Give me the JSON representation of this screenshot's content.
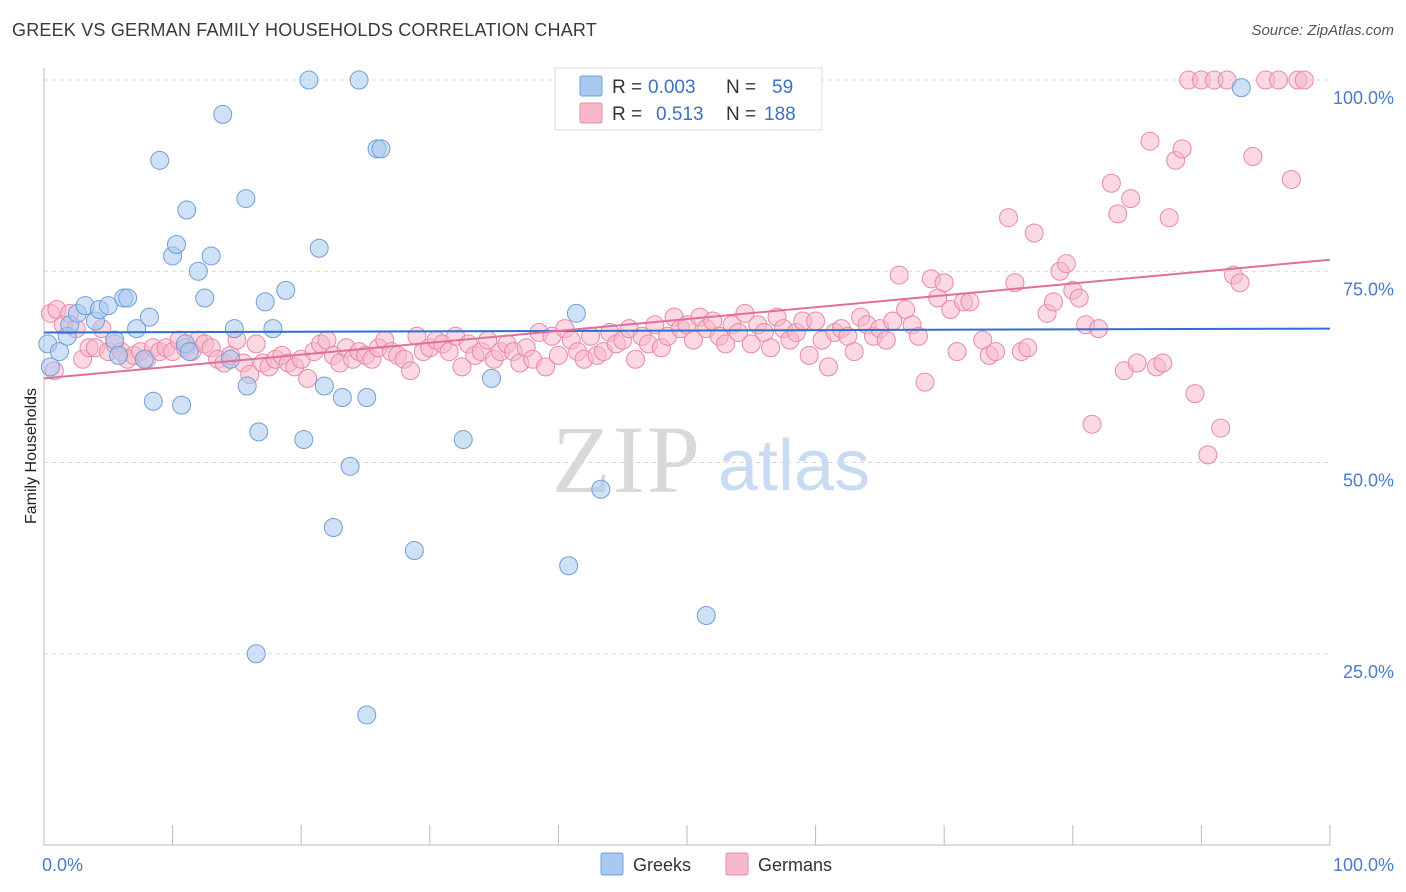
{
  "header": {
    "title": "GREEK VS GERMAN FAMILY HOUSEHOLDS CORRELATION CHART",
    "source": "Source: ZipAtlas.com"
  },
  "watermark": {
    "zip": "ZIP",
    "atlas": "atlas"
  },
  "legend_top": {
    "rows": [
      {
        "r_label": "R =",
        "r_value": "0.003",
        "n_label": "N =",
        "n_value": "59",
        "color": "#a8c8f0",
        "stroke": "#6f9fd8"
      },
      {
        "r_label": "R =",
        "r_value": "0.513",
        "n_label": "N =",
        "n_value": "188",
        "color": "#f7b8cb",
        "stroke": "#e889a8"
      }
    ]
  },
  "legend_bottom": [
    {
      "label": "Greeks",
      "color": "#a8c8f0",
      "stroke": "#6f9fd8"
    },
    {
      "label": "Germans",
      "color": "#f7b8cb",
      "stroke": "#e889a8"
    }
  ],
  "chart_data": {
    "type": "scatter",
    "title": "GREEK VS GERMAN FAMILY HOUSEHOLDS CORRELATION CHART",
    "xlabel": "",
    "ylabel": "Family Households",
    "xlim": [
      0,
      100
    ],
    "ylim": [
      0,
      100
    ],
    "x_tick_labels": [
      "0.0%",
      "100.0%"
    ],
    "y_tick_labels": [
      {
        "value": 25,
        "label": "25.0%"
      },
      {
        "value": 50,
        "label": "50.0%"
      },
      {
        "value": 75,
        "label": "75.0%"
      },
      {
        "value": 100,
        "label": "100.0%"
      }
    ],
    "grid": true,
    "legend_placement": "top-center",
    "series": [
      {
        "name": "Greeks",
        "color": "#a8c8f0",
        "stroke": "#6f9fd8",
        "trend_color": "#2f6fcf",
        "trend": {
          "x0": 0,
          "y0": 67.0,
          "x1": 100,
          "y1": 67.5
        },
        "points": [
          [
            0.3,
            65.5
          ],
          [
            0.5,
            62.5
          ],
          [
            1.2,
            64.5
          ],
          [
            1.8,
            66.5
          ],
          [
            2.0,
            68.0
          ],
          [
            2.6,
            69.5
          ],
          [
            3.2,
            70.5
          ],
          [
            4.0,
            68.5
          ],
          [
            4.3,
            70.0
          ],
          [
            5.0,
            70.5
          ],
          [
            5.5,
            66.0
          ],
          [
            5.8,
            64.0
          ],
          [
            6.2,
            71.5
          ],
          [
            6.5,
            71.5
          ],
          [
            7.2,
            67.5
          ],
          [
            7.8,
            63.5
          ],
          [
            8.2,
            69.0
          ],
          [
            8.5,
            58.0
          ],
          [
            9.0,
            89.5
          ],
          [
            10.0,
            77.0
          ],
          [
            10.3,
            78.5
          ],
          [
            10.7,
            57.5
          ],
          [
            11.1,
            83.0
          ],
          [
            11.0,
            65.5
          ],
          [
            11.3,
            64.5
          ],
          [
            12.0,
            75.0
          ],
          [
            12.5,
            71.5
          ],
          [
            13.0,
            77.0
          ],
          [
            13.9,
            95.5
          ],
          [
            14.5,
            63.5
          ],
          [
            14.8,
            67.5
          ],
          [
            15.8,
            60.0
          ],
          [
            15.7,
            84.5
          ],
          [
            16.7,
            54.0
          ],
          [
            17.2,
            71.0
          ],
          [
            17.8,
            67.5
          ],
          [
            18.8,
            72.5
          ],
          [
            20.2,
            53.0
          ],
          [
            20.6,
            100.0
          ],
          [
            21.4,
            78.0
          ],
          [
            21.8,
            60.0
          ],
          [
            22.5,
            41.5
          ],
          [
            23.2,
            58.5
          ],
          [
            23.8,
            49.5
          ],
          [
            24.5,
            100.0
          ],
          [
            25.1,
            58.5
          ],
          [
            25.9,
            91.0
          ],
          [
            26.2,
            91.0
          ],
          [
            28.8,
            38.5
          ],
          [
            32.6,
            53.0
          ],
          [
            34.8,
            61.0
          ],
          [
            40.8,
            36.5
          ],
          [
            41.4,
            69.5
          ],
          [
            43.3,
            46.5
          ],
          [
            51.5,
            30.0
          ],
          [
            56.5,
            100.0
          ],
          [
            93.1,
            99.0
          ],
          [
            16.5,
            25.0
          ],
          [
            25.1,
            17.0
          ]
        ]
      },
      {
        "name": "Germans",
        "color": "#f7b8cb",
        "stroke": "#e889a8",
        "trend_color": "#e0709a",
        "trend": {
          "x0": 0,
          "y0": 61.0,
          "x1": 100,
          "y1": 76.5
        },
        "points": [
          [
            0.5,
            69.5
          ],
          [
            1.0,
            70.0
          ],
          [
            1.5,
            68.0
          ],
          [
            2.0,
            69.5
          ],
          [
            2.5,
            67.5
          ],
          [
            3.0,
            63.5
          ],
          [
            3.5,
            65.0
          ],
          [
            4.0,
            65.0
          ],
          [
            4.5,
            67.5
          ],
          [
            5.0,
            64.5
          ],
          [
            5.5,
            65.5
          ],
          [
            6.0,
            64.5
          ],
          [
            6.5,
            63.5
          ],
          [
            7.0,
            64.0
          ],
          [
            7.5,
            64.5
          ],
          [
            8.0,
            63.5
          ],
          [
            8.5,
            65.0
          ],
          [
            9.0,
            64.5
          ],
          [
            9.5,
            65.0
          ],
          [
            10.0,
            64.5
          ],
          [
            10.5,
            66.0
          ],
          [
            11.0,
            65.0
          ],
          [
            11.5,
            64.5
          ],
          [
            12.0,
            66.0
          ],
          [
            12.5,
            65.5
          ],
          [
            13.0,
            65.0
          ],
          [
            13.5,
            63.5
          ],
          [
            14.0,
            63.0
          ],
          [
            14.5,
            64.0
          ],
          [
            15.0,
            66.0
          ],
          [
            15.5,
            63.0
          ],
          [
            16.0,
            61.5
          ],
          [
            16.5,
            65.5
          ],
          [
            17.0,
            63.0
          ],
          [
            17.5,
            62.5
          ],
          [
            18.0,
            63.5
          ],
          [
            18.5,
            64.0
          ],
          [
            19.0,
            63.0
          ],
          [
            19.5,
            62.5
          ],
          [
            20.0,
            63.5
          ],
          [
            20.5,
            61.0
          ],
          [
            21.0,
            64.5
          ],
          [
            21.5,
            65.5
          ],
          [
            22.0,
            66.0
          ],
          [
            22.5,
            64.0
          ],
          [
            23.0,
            63.0
          ],
          [
            23.5,
            65.0
          ],
          [
            24.0,
            63.5
          ],
          [
            24.5,
            64.5
          ],
          [
            25.0,
            64.0
          ],
          [
            25.5,
            63.5
          ],
          [
            26.0,
            65.0
          ],
          [
            26.5,
            66.0
          ],
          [
            27.0,
            64.5
          ],
          [
            27.5,
            64.0
          ],
          [
            28.0,
            63.5
          ],
          [
            28.5,
            62.0
          ],
          [
            29.0,
            66.5
          ],
          [
            29.5,
            64.5
          ],
          [
            30.0,
            65.0
          ],
          [
            30.5,
            66.0
          ],
          [
            31.0,
            65.5
          ],
          [
            31.5,
            64.5
          ],
          [
            32.0,
            66.5
          ],
          [
            32.5,
            62.5
          ],
          [
            33.0,
            65.5
          ],
          [
            33.5,
            64.0
          ],
          [
            34.0,
            64.5
          ],
          [
            34.5,
            66.0
          ],
          [
            35.0,
            63.5
          ],
          [
            35.5,
            64.5
          ],
          [
            36.0,
            65.5
          ],
          [
            36.5,
            64.5
          ],
          [
            37.0,
            63.0
          ],
          [
            37.5,
            65.0
          ],
          [
            38.0,
            63.5
          ],
          [
            38.5,
            67.0
          ],
          [
            39.0,
            62.5
          ],
          [
            39.5,
            66.5
          ],
          [
            40.0,
            64.0
          ],
          [
            40.5,
            67.5
          ],
          [
            41.0,
            66.0
          ],
          [
            41.5,
            64.5
          ],
          [
            42.0,
            63.5
          ],
          [
            42.5,
            66.5
          ],
          [
            43.0,
            64.0
          ],
          [
            43.5,
            64.5
          ],
          [
            44.0,
            67.0
          ],
          [
            44.5,
            65.5
          ],
          [
            45.0,
            66.0
          ],
          [
            45.5,
            67.5
          ],
          [
            46.0,
            63.5
          ],
          [
            46.5,
            66.5
          ],
          [
            47.0,
            65.5
          ],
          [
            47.5,
            68.0
          ],
          [
            48.0,
            65.0
          ],
          [
            48.5,
            66.5
          ],
          [
            49.0,
            69.0
          ],
          [
            49.5,
            67.5
          ],
          [
            50.0,
            68.0
          ],
          [
            50.5,
            66.0
          ],
          [
            51.0,
            69.0
          ],
          [
            51.5,
            67.5
          ],
          [
            52.0,
            68.5
          ],
          [
            52.5,
            66.5
          ],
          [
            53.0,
            65.5
          ],
          [
            53.5,
            68.0
          ],
          [
            54.0,
            67.0
          ],
          [
            54.5,
            69.5
          ],
          [
            55.0,
            65.5
          ],
          [
            55.5,
            68.0
          ],
          [
            56.0,
            67.0
          ],
          [
            56.5,
            65.0
          ],
          [
            57.0,
            69.0
          ],
          [
            57.5,
            67.5
          ],
          [
            58.0,
            66.0
          ],
          [
            58.5,
            67.0
          ],
          [
            59.0,
            68.5
          ],
          [
            59.5,
            64.0
          ],
          [
            60.0,
            68.5
          ],
          [
            60.5,
            66.0
          ],
          [
            61.0,
            62.5
          ],
          [
            61.5,
            67.0
          ],
          [
            62.0,
            67.5
          ],
          [
            62.5,
            66.5
          ],
          [
            63.0,
            64.5
          ],
          [
            63.5,
            69.0
          ],
          [
            64.0,
            68.0
          ],
          [
            64.5,
            66.5
          ],
          [
            65.0,
            67.5
          ],
          [
            65.5,
            66.0
          ],
          [
            66.0,
            68.5
          ],
          [
            66.5,
            74.5
          ],
          [
            67.0,
            70.0
          ],
          [
            67.5,
            68.0
          ],
          [
            68.0,
            66.5
          ],
          [
            68.5,
            60.5
          ],
          [
            69.0,
            74.0
          ],
          [
            69.5,
            71.5
          ],
          [
            70.0,
            73.5
          ],
          [
            70.5,
            70.0
          ],
          [
            71.0,
            64.5
          ],
          [
            71.5,
            71.0
          ],
          [
            72.0,
            71.0
          ],
          [
            73.0,
            66.0
          ],
          [
            73.5,
            64.0
          ],
          [
            74.0,
            64.5
          ],
          [
            75.0,
            82.0
          ],
          [
            75.5,
            73.5
          ],
          [
            76.0,
            64.5
          ],
          [
            76.5,
            65.0
          ],
          [
            77.0,
            80.0
          ],
          [
            78.0,
            69.5
          ],
          [
            78.5,
            71.0
          ],
          [
            79.0,
            75.0
          ],
          [
            79.5,
            76.0
          ],
          [
            80.0,
            72.5
          ],
          [
            80.5,
            71.5
          ],
          [
            81.0,
            68.0
          ],
          [
            81.5,
            55.0
          ],
          [
            82.0,
            67.5
          ],
          [
            83.0,
            86.5
          ],
          [
            83.5,
            82.5
          ],
          [
            84.0,
            62.0
          ],
          [
            84.5,
            84.5
          ],
          [
            85.0,
            63.0
          ],
          [
            86.0,
            92.0
          ],
          [
            86.5,
            62.5
          ],
          [
            87.0,
            63.0
          ],
          [
            87.5,
            82.0
          ],
          [
            88.0,
            89.5
          ],
          [
            88.5,
            91.0
          ],
          [
            89.0,
            100.0
          ],
          [
            89.5,
            59.0
          ],
          [
            90.0,
            100.0
          ],
          [
            90.5,
            51.0
          ],
          [
            91.0,
            100.0
          ],
          [
            91.5,
            54.5
          ],
          [
            92.0,
            100.0
          ],
          [
            92.5,
            74.5
          ],
          [
            93.0,
            73.5
          ],
          [
            94.0,
            90.0
          ],
          [
            95.0,
            100.0
          ],
          [
            96.0,
            100.0
          ],
          [
            97.0,
            87.0
          ],
          [
            97.5,
            100.0
          ],
          [
            98.0,
            100.0
          ],
          [
            0.8,
            62.0
          ]
        ]
      }
    ]
  }
}
